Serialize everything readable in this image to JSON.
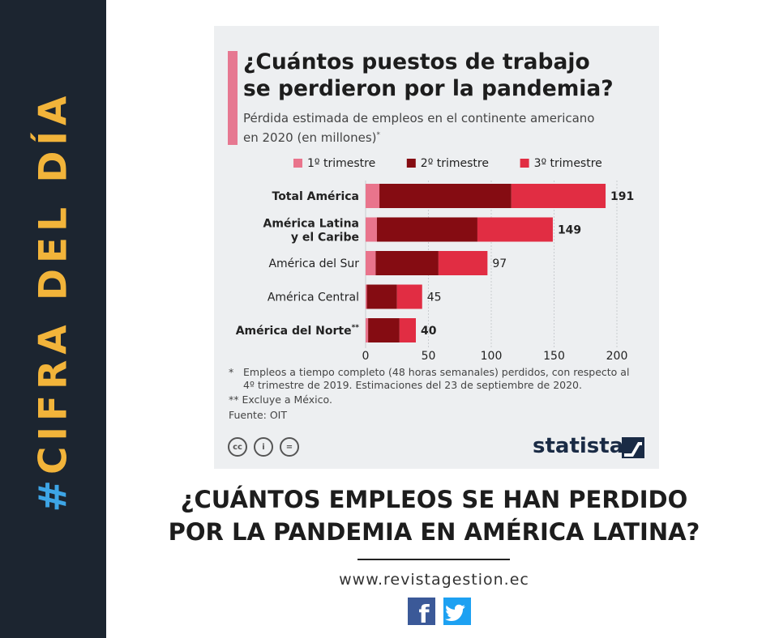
{
  "sidebar": {
    "hash": "#",
    "label": "CIFRA DEL DÍA"
  },
  "card": {
    "title_line1": "¿Cuántos puestos de trabajo",
    "title_line2": "se perdieron por la pandemia?",
    "subtitle_line1": "Pérdida estimada de empleos en el continente americano",
    "subtitle_line2": "en 2020 (en millones)",
    "subtitle_mark": "*",
    "notes": {
      "star_mark": "*",
      "star_line1": "Empleos a tiempo completo (48 horas semanales) perdidos, con respecto al",
      "star_line2": "4º trimestre de 2019. Estimaciones del 23 de septiembre de 2020.",
      "double_star": "** Excluye a México.",
      "source": "Fuente: OIT"
    },
    "license_icons": [
      "cc-icon",
      "by-icon",
      "nd-icon"
    ],
    "license_labels": [
      "cc",
      "i",
      "="
    ],
    "brand": "statista"
  },
  "chart_data": {
    "type": "bar",
    "orientation": "horizontal",
    "stacked": true,
    "title": "¿Cuántos puestos de trabajo se perdieron por la pandemia?",
    "subtitle": "Pérdida estimada de empleos en el continente americano en 2020 (en millones)*",
    "categories": [
      {
        "lines": [
          "Total América"
        ],
        "bold": true,
        "total": "191"
      },
      {
        "lines": [
          "América Latina",
          "y el Caribe"
        ],
        "bold": true,
        "total": "149"
      },
      {
        "lines": [
          "América del Sur"
        ],
        "bold": false,
        "total": "97"
      },
      {
        "lines": [
          "América Central"
        ],
        "bold": false,
        "total": "45"
      },
      {
        "lines": [
          "América del Norte"
        ],
        "bold": true,
        "sup": "**",
        "total": "40"
      }
    ],
    "series": [
      {
        "name": "1º trimestre",
        "color": "#e9748c",
        "values": [
          11,
          9,
          8,
          1,
          2
        ]
      },
      {
        "name": "2º trimestre",
        "color": "#850c12",
        "values": [
          105,
          80,
          50,
          24,
          25
        ]
      },
      {
        "name": "3º trimestre",
        "color": "#e12d43",
        "values": [
          75,
          60,
          39,
          20,
          13
        ]
      }
    ],
    "xlim": [
      0,
      200
    ],
    "xticks": [
      "0",
      "50",
      "100",
      "150",
      "200"
    ],
    "legend_position": "top"
  },
  "headline": {
    "line1": "¿CUÁNTOS EMPLEOS SE HAN PERDIDO",
    "line2": "POR LA PANDEMIA EN AMÉRICA LATINA?"
  },
  "website": "www.revistagestion.ec",
  "social": {
    "facebook_label": "f",
    "twitter_label": "🐦"
  }
}
